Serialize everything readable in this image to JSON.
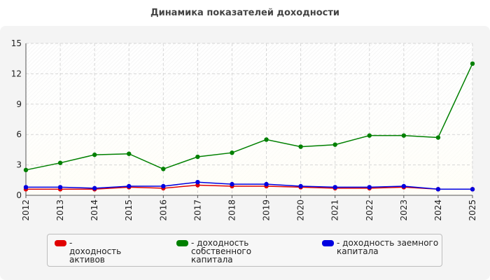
{
  "chart_data": {
    "type": "line",
    "title": "Динамика показателей доходности",
    "x": [
      "2012",
      "2013",
      "2014",
      "2015",
      "2016",
      "2017",
      "2018",
      "2019",
      "2020",
      "2021",
      "2022",
      "2023",
      "2024",
      "2025"
    ],
    "ylim": [
      0,
      15
    ],
    "yticks": [
      0,
      3,
      6,
      9,
      12,
      15
    ],
    "grid": true,
    "legend_position": "bottom",
    "series": [
      {
        "name": "- доходность активов",
        "color": "#e00000",
        "values": [
          0.6,
          0.6,
          0.6,
          0.8,
          0.7,
          1.0,
          0.9,
          0.9,
          0.8,
          0.7,
          0.7,
          0.8,
          0.6,
          0.6
        ]
      },
      {
        "name": "- доходность собственного капитала",
        "color": "#008000",
        "values": [
          2.5,
          3.2,
          4.0,
          4.1,
          2.6,
          3.8,
          4.2,
          5.5,
          4.8,
          5.0,
          5.9,
          5.9,
          5.7,
          13.0
        ]
      },
      {
        "name": "- доходность заемного капитала",
        "color": "#0000e0",
        "values": [
          0.8,
          0.8,
          0.7,
          0.9,
          0.9,
          1.3,
          1.1,
          1.1,
          0.9,
          0.8,
          0.8,
          0.9,
          0.6,
          0.6
        ]
      }
    ]
  },
  "legend": {
    "items": [
      {
        "line1": "- доходность активов",
        "line2": ""
      },
      {
        "line1": "- доходность собственного",
        "line2": "капитала"
      },
      {
        "line1": "- доходность заемного",
        "line2": "капитала"
      }
    ]
  }
}
